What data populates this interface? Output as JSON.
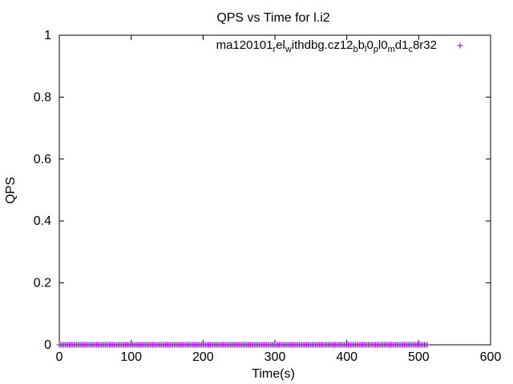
{
  "chart_data": {
    "type": "scatter",
    "title": "QPS vs Time for l.i2",
    "xlabel": "Time(s)",
    "ylabel": "QPS",
    "xlim": [
      0,
      600
    ],
    "ylim": [
      0,
      1
    ],
    "xticks": [
      "0",
      "100",
      "200",
      "300",
      "400",
      "500",
      "600"
    ],
    "yticks": [
      "0",
      "0.2",
      "0.4",
      "0.6",
      "0.8",
      "1"
    ],
    "grid": false,
    "legend_position": "top-right",
    "series": [
      {
        "name_parts": [
          {
            "t": "ma120101",
            "sub": false
          },
          {
            "t": "r",
            "sub": true
          },
          {
            "t": "el",
            "sub": false
          },
          {
            "t": "w",
            "sub": true
          },
          {
            "t": "ithdbg.cz12",
            "sub": false
          },
          {
            "t": "b",
            "sub": true
          },
          {
            "t": "b",
            "sub": false
          },
          {
            "t": "l",
            "sub": true
          },
          {
            "t": "0",
            "sub": false
          },
          {
            "t": "p",
            "sub": true
          },
          {
            "t": "l0",
            "sub": false
          },
          {
            "t": "m",
            "sub": true
          },
          {
            "t": "d1",
            "sub": false
          },
          {
            "t": "c",
            "sub": true
          },
          {
            "t": "8r32",
            "sub": false
          }
        ],
        "color": "#9400d3",
        "marker": "plus",
        "x_range": [
          0,
          512
        ],
        "y_value": 0
      }
    ]
  }
}
